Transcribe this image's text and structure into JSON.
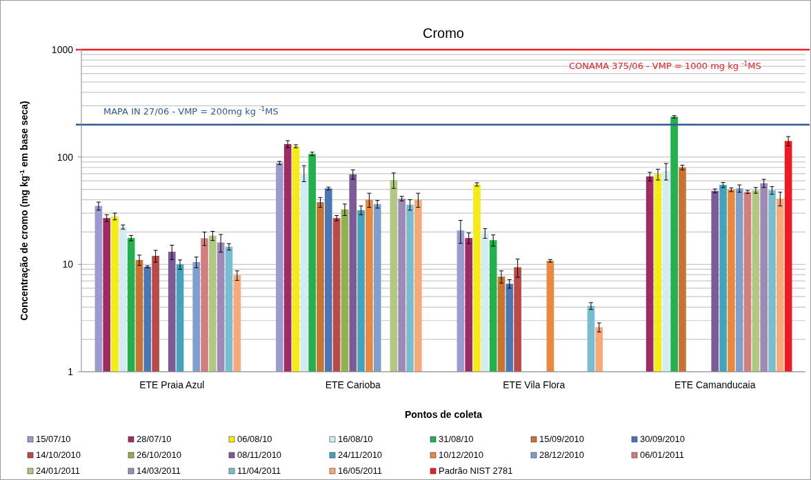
{
  "chart_data": {
    "type": "bar",
    "title": "Cromo",
    "xlabel": "Pontos de coleta",
    "ylabel": "Concentração de cromo (mg  kg$^{-1}$ em  base seca)",
    "categories": [
      "ETE Praia Azul",
      "ETE Carioba",
      "ETE Vila Flora",
      "ETE Camanducaia"
    ],
    "log": "y",
    "ylim": [
      1,
      1000
    ],
    "yticks": [
      1,
      10,
      100,
      1000
    ],
    "grid": "y",
    "legend": "bottom",
    "ref_lines": [
      {
        "axis": "y",
        "value": 1000,
        "label": "CONAMA 375/06 - VMP  = 1000 mg kg $^{-1}$MS",
        "color": "#ee1c24"
      },
      {
        "axis": "y",
        "value": 200,
        "label": "MAPA IN 27/06 - VMP  = 200mg  kg $^{-1}$MS",
        "color": "#2e5a94"
      }
    ],
    "series": [
      {
        "name": "15/07/10",
        "color": "#9b9bd0",
        "values": [
          35,
          88,
          20.7,
          null
        ],
        "errors": [
          3,
          3,
          5,
          null
        ]
      },
      {
        "name": "28/07/10",
        "color": "#9e2c62",
        "values": [
          27,
          132,
          17.6,
          66
        ],
        "errors": [
          2,
          10,
          2,
          6
        ]
      },
      {
        "name": "06/08/10",
        "color": "#f5ec17",
        "values": [
          28,
          126,
          55.6,
          69
        ],
        "errors": [
          2,
          4,
          2,
          8
        ]
      },
      {
        "name": "16/08/10",
        "color": "#d3ecf3",
        "values": [
          22.3,
          71,
          19.5,
          74
        ],
        "errors": [
          1,
          12,
          2,
          13
        ]
      },
      {
        "name": "31/08/10",
        "color": "#22b14c",
        "values": [
          17.6,
          107,
          16.8,
          237
        ],
        "errors": [
          1,
          4,
          2,
          6
        ]
      },
      {
        "name": "15/09/2010",
        "color": "#c77432",
        "values": [
          11,
          38,
          7.7,
          80
        ],
        "errors": [
          1.2,
          4,
          1,
          4
        ]
      },
      {
        "name": "30/09/2010",
        "color": "#4a77b4",
        "values": [
          9.5,
          51,
          6.6,
          null
        ],
        "errors": [
          0.2,
          1.5,
          0.6,
          null
        ]
      },
      {
        "name": "14/10/2010",
        "color": "#b94a48",
        "values": [
          12,
          27,
          9.4,
          null
        ],
        "errors": [
          1.5,
          1.5,
          1.8,
          null
        ]
      },
      {
        "name": "26/10/2010",
        "color": "#93b050",
        "values": [
          null,
          32.5,
          null,
          null
        ],
        "errors": [
          null,
          4,
          null,
          null
        ]
      },
      {
        "name": "08/11/2010",
        "color": "#7b5c98",
        "values": [
          13.1,
          69,
          null,
          48.4
        ],
        "errors": [
          2,
          7,
          null,
          2
        ]
      },
      {
        "name": "24/11/2010",
        "color": "#43a3bc",
        "values": [
          10,
          32,
          null,
          55
        ],
        "errors": [
          1,
          3,
          null,
          3
        ]
      },
      {
        "name": "10/12/2010",
        "color": "#e8893f",
        "values": [
          null,
          40,
          10.8,
          49.6
        ],
        "errors": [
          null,
          6,
          0.3,
          2
        ]
      },
      {
        "name": "28/12/2010",
        "color": "#7f9fcd",
        "values": [
          10.5,
          36.4,
          null,
          51
        ],
        "errors": [
          1.2,
          3,
          null,
          4
        ]
      },
      {
        "name": "06/01/2011",
        "color": "#d27e7e",
        "values": [
          17.5,
          null,
          null,
          47.3
        ],
        "errors": [
          2.5,
          null,
          null,
          1.5
        ]
      },
      {
        "name": "24/01/2011",
        "color": "#b0c882",
        "values": [
          18.5,
          61,
          null,
          49
        ],
        "errors": [
          1.8,
          10,
          null,
          3
        ]
      },
      {
        "name": "14/03/2011",
        "color": "#9f89b6",
        "values": [
          16,
          41,
          null,
          57
        ],
        "errors": [
          3,
          2,
          null,
          5
        ]
      },
      {
        "name": "11/04/2011",
        "color": "#7bbdd0",
        "values": [
          14.6,
          36,
          4.1,
          49
        ],
        "errors": [
          1,
          4,
          0.3,
          4
        ]
      },
      {
        "name": "16/05/2011",
        "color": "#f7a978",
        "values": [
          7.9,
          40,
          2.6,
          41
        ],
        "errors": [
          0.8,
          6,
          0.25,
          6
        ]
      },
      {
        "name": "Padrão NIST 2781",
        "color": "#ed1c24",
        "values": [
          null,
          null,
          null,
          141
        ],
        "errors": [
          null,
          null,
          null,
          14
        ]
      }
    ]
  }
}
